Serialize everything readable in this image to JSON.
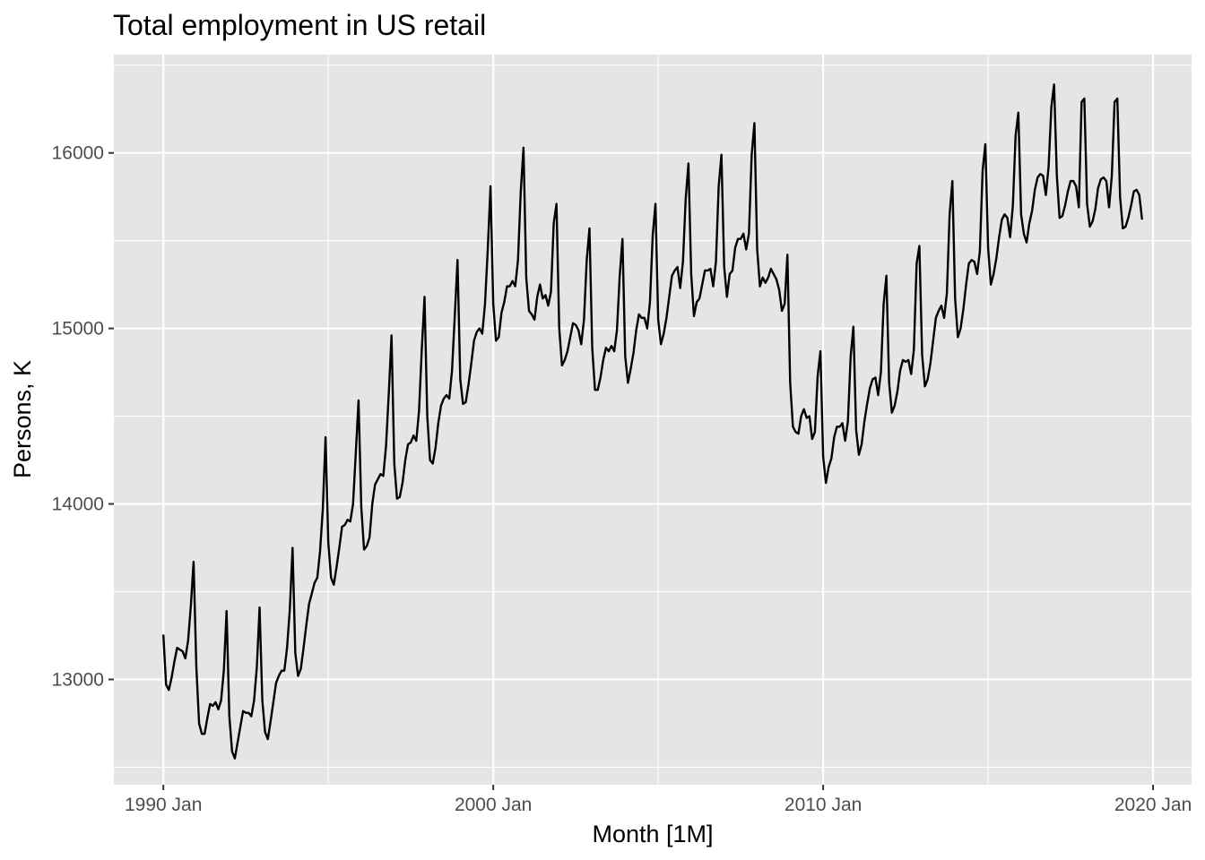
{
  "chart_data": {
    "type": "line",
    "title": "Total employment in US retail",
    "xlabel": "Month [1M]",
    "ylabel": "Persons, K",
    "x_tick_labels": [
      "1990 Jan",
      "2000 Jan",
      "2010 Jan",
      "2020 Jan"
    ],
    "y_tick_labels": [
      "13000",
      "14000",
      "15000",
      "16000"
    ],
    "x_ticks_year": [
      1990,
      2000,
      2010,
      2020
    ],
    "y_ticks": [
      13000,
      14000,
      15000,
      16000
    ],
    "xlim": [
      "1988-07",
      "2021-03"
    ],
    "ylim": [
      12400,
      16560
    ],
    "grid": true,
    "legend": "none",
    "colors": {
      "panel": "#e5e5e5",
      "grid": "#ffffff",
      "line": "#000000",
      "tick_text": "#4d4d4d",
      "tick_mark": "#333333"
    },
    "series": [
      {
        "start": "1990-01",
        "frequency": "monthly",
        "values": [
          13255,
          12970,
          12940,
          13010,
          13100,
          13180,
          13170,
          13160,
          13120,
          13220,
          13420,
          13670,
          13070,
          12750,
          12690,
          12690,
          12780,
          12860,
          12850,
          12870,
          12830,
          12880,
          13050,
          13390,
          12790,
          12590,
          12550,
          12640,
          12730,
          12820,
          12810,
          12810,
          12790,
          12880,
          13070,
          13410,
          12880,
          12700,
          12660,
          12760,
          12870,
          12980,
          13020,
          13050,
          13050,
          13180,
          13400,
          13750,
          13150,
          13020,
          13060,
          13180,
          13310,
          13430,
          13490,
          13550,
          13580,
          13730,
          13970,
          14380,
          13780,
          13580,
          13540,
          13640,
          13750,
          13870,
          13880,
          13910,
          13900,
          14000,
          14290,
          14590,
          13980,
          13740,
          13760,
          13810,
          14000,
          14110,
          14140,
          14170,
          14160,
          14330,
          14630,
          14960,
          14230,
          14030,
          14040,
          14120,
          14250,
          14340,
          14350,
          14390,
          14360,
          14530,
          14880,
          15180,
          14500,
          14250,
          14230,
          14320,
          14460,
          14560,
          14600,
          14620,
          14600,
          14760,
          15070,
          15390,
          14710,
          14570,
          14580,
          14680,
          14800,
          14930,
          14980,
          15000,
          14970,
          15140,
          15450,
          15810,
          15140,
          14930,
          14950,
          15090,
          15150,
          15240,
          15240,
          15270,
          15240,
          15390,
          15780,
          16030,
          15290,
          15100,
          15080,
          15050,
          15180,
          15250,
          15170,
          15190,
          15130,
          15210,
          15600,
          15710,
          15000,
          14790,
          14820,
          14870,
          14950,
          15030,
          15020,
          14990,
          14910,
          15050,
          15390,
          15570,
          14890,
          14650,
          14650,
          14720,
          14820,
          14890,
          14870,
          14900,
          14870,
          14990,
          15300,
          15510,
          14840,
          14690,
          14770,
          14860,
          14990,
          15080,
          15060,
          15060,
          15000,
          15150,
          15530,
          15710,
          15050,
          14910,
          14970,
          15060,
          15180,
          15300,
          15330,
          15350,
          15230,
          15380,
          15740,
          15940,
          15310,
          15070,
          15150,
          15170,
          15250,
          15330,
          15330,
          15340,
          15240,
          15380,
          15810,
          15990,
          15350,
          15180,
          15310,
          15330,
          15460,
          15510,
          15510,
          15540,
          15450,
          15540,
          15990,
          16170,
          15450,
          15240,
          15290,
          15260,
          15290,
          15340,
          15310,
          15280,
          15220,
          15100,
          15140,
          15420,
          14690,
          14440,
          14410,
          14400,
          14500,
          14540,
          14490,
          14500,
          14370,
          14410,
          14730,
          14870,
          14270,
          14120,
          14210,
          14260,
          14380,
          14440,
          14440,
          14460,
          14360,
          14470,
          14840,
          15010,
          14420,
          14280,
          14340,
          14470,
          14570,
          14660,
          14710,
          14720,
          14620,
          14750,
          15140,
          15300,
          14690,
          14520,
          14560,
          14640,
          14760,
          14820,
          14810,
          14820,
          14740,
          14880,
          15370,
          15470,
          14850,
          14670,
          14710,
          14800,
          14930,
          15060,
          15100,
          15130,
          15060,
          15200,
          15650,
          15840,
          15170,
          14950,
          15000,
          15110,
          15250,
          15370,
          15390,
          15380,
          15310,
          15440,
          15900,
          16050,
          15460,
          15250,
          15310,
          15400,
          15520,
          15620,
          15650,
          15630,
          15520,
          15700,
          16100,
          16230,
          15650,
          15540,
          15490,
          15600,
          15670,
          15790,
          15860,
          15880,
          15870,
          15760,
          15920,
          16260,
          16390,
          15870,
          15630,
          15640,
          15700,
          15780,
          15840,
          15840,
          15810,
          15690,
          16290,
          16310,
          15710,
          15580,
          15610,
          15680,
          15800,
          15850,
          15860,
          15840,
          15690,
          15870,
          16290,
          16310,
          15750,
          15570,
          15580,
          15630,
          15700,
          15780,
          15790,
          15760,
          15620
        ]
      }
    ]
  }
}
